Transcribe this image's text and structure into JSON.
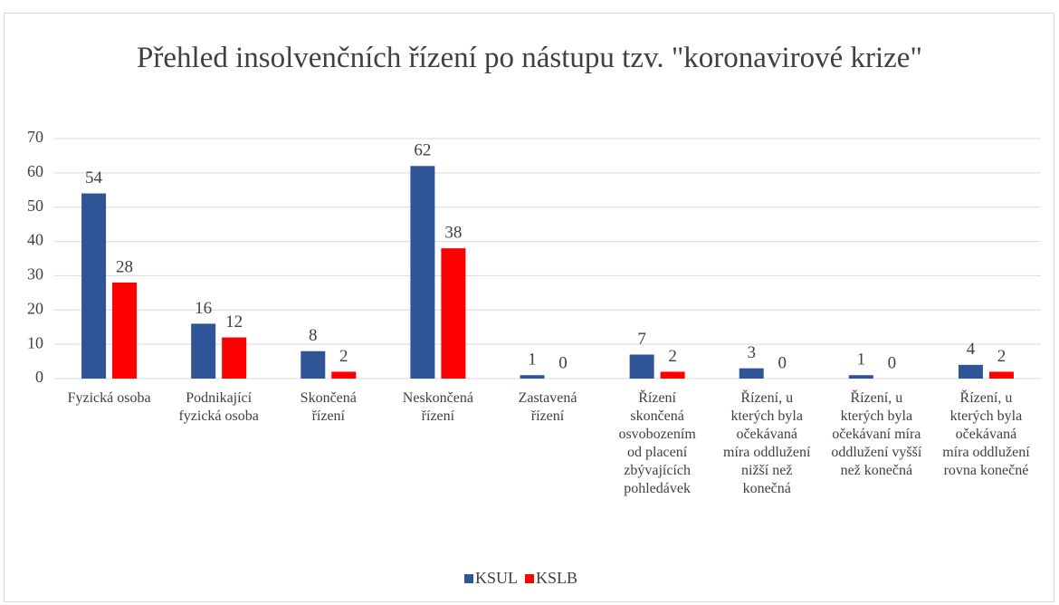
{
  "chart_data": {
    "type": "bar",
    "title": "Přehled insolvenčních řízení po nástupu tzv. \"koronavirové krize\"",
    "categories": [
      "Fyzická osoba",
      "Podnikající fyzická osoba",
      "Skončená řízení",
      "Neskončená řízení",
      "Zastavená řízení",
      "Řízení skončená osvobozením od placení zbývajících pohledávek",
      "Řízení, u kterých byla očekávaná míra oddlužení nižší než konečná",
      "Řízení, u kterých byla očekávaní míra oddlužení vyšší než konečná",
      "Řízení, u kterých byla očekávaná míra oddlužení rovna konečné"
    ],
    "series": [
      {
        "name": "KSUL",
        "color": "#2f5597",
        "values": [
          54,
          16,
          8,
          62,
          1,
          7,
          3,
          1,
          4
        ]
      },
      {
        "name": "KSLB",
        "color": "#ff0000",
        "values": [
          28,
          12,
          2,
          38,
          0,
          2,
          0,
          0,
          2
        ]
      }
    ],
    "ylim": [
      0,
      70
    ],
    "yticks": [
      0,
      10,
      20,
      30,
      40,
      50,
      60,
      70
    ],
    "grid": true,
    "legend": "bottom"
  }
}
